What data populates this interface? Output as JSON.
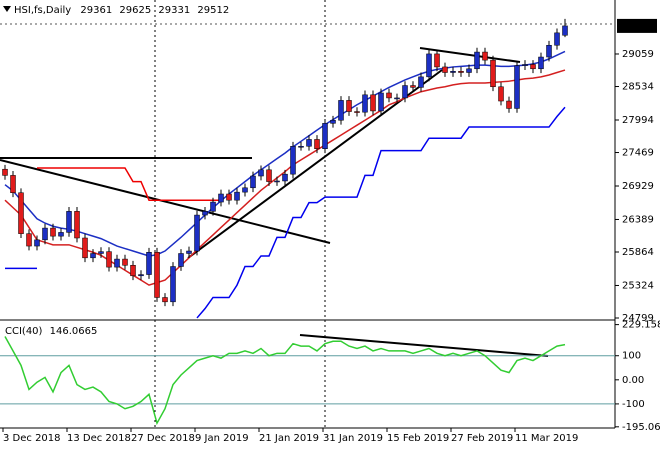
{
  "chart_data": {
    "type": "candlestick",
    "header": "HSI,fs,Daily",
    "up_color": "#1c2fc4",
    "down_color": "#e01b1b",
    "categories": [
      "3 Dec 2018",
      null,
      null,
      null,
      null,
      null,
      null,
      null,
      "13 Dec 2018",
      null,
      null,
      null,
      null,
      null,
      null,
      null,
      "27 Dec 2018",
      null,
      null,
      null,
      null,
      null,
      null,
      null,
      "9 Jan 2019",
      null,
      null,
      null,
      null,
      null,
      null,
      null,
      "21 Jan 2019",
      null,
      null,
      null,
      null,
      null,
      null,
      null,
      "31 Jan 2019",
      null,
      null,
      null,
      null,
      null,
      null,
      null,
      "15 Feb 2019",
      null,
      null,
      null,
      null,
      null,
      null,
      null,
      "27 Feb 2019",
      null,
      null,
      null,
      null,
      null,
      null,
      null,
      "11 Mar 2019",
      null,
      null,
      null,
      null,
      null,
      null
    ],
    "open": [
      27200,
      27100,
      26820,
      26160,
      25960,
      26060,
      26250,
      26120,
      26180,
      26520,
      26090,
      25770,
      25840,
      25870,
      25620,
      25750,
      25650,
      25480,
      25500,
      25860,
      25130,
      25060,
      25630,
      25840,
      25880,
      26460,
      26520,
      26670,
      26800,
      26700,
      26830,
      26900,
      27090,
      27190,
      27000,
      27010,
      27120,
      27570,
      27570,
      27680,
      27530,
      27940,
      27990,
      28310,
      28130,
      28120,
      28400,
      28140,
      28430,
      28350,
      28350,
      28550,
      28520,
      28690,
      29060,
      28850,
      28760,
      28780,
      28760,
      28820,
      29090,
      28960,
      28530,
      28300,
      28180,
      28870,
      28890,
      28820,
      29010,
      29200,
      29361
    ],
    "high": [
      27270,
      27170,
      26890,
      26230,
      26130,
      26320,
      26320,
      26250,
      26590,
      26590,
      26160,
      25910,
      25940,
      25940,
      25820,
      25820,
      25720,
      25570,
      25930,
      25930,
      25200,
      25700,
      25910,
      25950,
      26530,
      26590,
      26740,
      26870,
      26870,
      26900,
      26970,
      27160,
      27260,
      27260,
      27080,
      27190,
      27640,
      27640,
      27750,
      27750,
      28010,
      28060,
      28380,
      28380,
      28200,
      28470,
      28470,
      28500,
      28500,
      28420,
      28620,
      28620,
      28760,
      29130,
      29130,
      28920,
      28850,
      28850,
      28890,
      29160,
      29160,
      29030,
      28600,
      28370,
      28940,
      28960,
      28960,
      29080,
      29270,
      29470,
      29625
    ],
    "low": [
      27030,
      26750,
      26090,
      25890,
      25890,
      25990,
      26050,
      26050,
      26110,
      26020,
      25700,
      25700,
      25770,
      25550,
      25550,
      25580,
      25410,
      25410,
      25430,
      25060,
      24990,
      24990,
      25560,
      25770,
      25810,
      26390,
      26450,
      26600,
      26630,
      26630,
      26760,
      26830,
      27020,
      26930,
      26930,
      26940,
      27050,
      27500,
      27500,
      27460,
      27460,
      27870,
      27920,
      28060,
      28050,
      28050,
      28070,
      28070,
      28280,
      28280,
      28280,
      28450,
      28450,
      28620,
      28780,
      28690,
      28690,
      28690,
      28690,
      28750,
      28890,
      28460,
      28230,
      28110,
      28110,
      28800,
      28750,
      28750,
      28940,
      29130,
      29331
    ],
    "close": [
      27100,
      26820,
      26160,
      25960,
      26060,
      26250,
      26120,
      26180,
      26520,
      26090,
      25770,
      25840,
      25870,
      25620,
      25750,
      25650,
      25480,
      25500,
      25860,
      25130,
      25060,
      25630,
      25840,
      25880,
      26460,
      26520,
      26670,
      26800,
      26700,
      26830,
      26900,
      27090,
      27190,
      27000,
      27010,
      27120,
      27570,
      27570,
      27680,
      27530,
      27940,
      27990,
      28310,
      28130,
      28120,
      28400,
      28140,
      28430,
      28350,
      28350,
      28550,
      28520,
      28690,
      29060,
      28850,
      28760,
      28780,
      28760,
      28820,
      29090,
      28960,
      28530,
      28300,
      28180,
      28870,
      28890,
      28820,
      29010,
      29200,
      29400,
      29512
    ],
    "overlays": [
      {
        "color": "#d42020",
        "values": [
          26700,
          26580,
          26460,
          26260,
          26060,
          26020,
          25980,
          25980,
          25980,
          25940,
          25900,
          25860,
          25810,
          25730,
          25650,
          25570,
          25490,
          25410,
          25330,
          25370,
          25410,
          25530,
          25650,
          25770,
          25900,
          26020,
          26140,
          26260,
          26380,
          26500,
          26620,
          26740,
          26860,
          26960,
          27060,
          27160,
          27270,
          27350,
          27430,
          27510,
          27590,
          27670,
          27750,
          27830,
          27910,
          27990,
          28070,
          28150,
          28240,
          28290,
          28350,
          28400,
          28450,
          28480,
          28510,
          28530,
          28560,
          28580,
          28590,
          28590,
          28590,
          28600,
          28610,
          28620,
          28640,
          28660,
          28670,
          28690,
          28720,
          28760,
          28800
        ]
      },
      {
        "color": "#1c2fc4",
        "values": [
          26950,
          26850,
          26700,
          26550,
          26400,
          26330,
          26280,
          26250,
          26230,
          26200,
          26160,
          26120,
          26080,
          26020,
          25960,
          25920,
          25880,
          25840,
          25800,
          25820,
          25880,
          25990,
          26100,
          26220,
          26340,
          26460,
          26580,
          26690,
          26800,
          26900,
          27000,
          27100,
          27190,
          27280,
          27370,
          27460,
          27560,
          27650,
          27740,
          27830,
          27920,
          28000,
          28080,
          28160,
          28240,
          28310,
          28380,
          28450,
          28520,
          28580,
          28640,
          28690,
          28740,
          28780,
          28810,
          28830,
          28850,
          28860,
          28870,
          28880,
          28880,
          28870,
          28860,
          28860,
          28870,
          28880,
          28900,
          28930,
          28980,
          29040,
          29100
        ]
      },
      {
        "color": "#0000ee",
        "values": [
          25600,
          25600,
          25600,
          25600,
          25600,
          null,
          null,
          null,
          null,
          null,
          null,
          null,
          null,
          null,
          null,
          null,
          null,
          null,
          null,
          null,
          null,
          null,
          null,
          null,
          24800,
          24950,
          25130,
          25130,
          25130,
          25330,
          25630,
          25630,
          25800,
          25800,
          26100,
          26100,
          26420,
          26420,
          26660,
          26660,
          26750,
          26750,
          26750,
          26750,
          26750,
          27100,
          27100,
          27500,
          27500,
          27500,
          27500,
          27500,
          27500,
          27700,
          27700,
          27700,
          27700,
          27700,
          27880,
          27880,
          27880,
          27880,
          27880,
          27880,
          27880,
          27880,
          27880,
          27880,
          27880,
          28050,
          28200
        ]
      },
      {
        "color": "#ee0000",
        "values": [
          null,
          null,
          null,
          null,
          27220,
          27220,
          27220,
          27220,
          27220,
          27220,
          27220,
          27220,
          27220,
          27220,
          27220,
          27220,
          27000,
          27000,
          26700,
          26700,
          26700,
          26700,
          26700,
          26700,
          26700,
          26700,
          26700,
          26700,
          null,
          null,
          null,
          null,
          null,
          null,
          null,
          null,
          null,
          null,
          null,
          null,
          null,
          null,
          null,
          null,
          null,
          null,
          null,
          null,
          null,
          null,
          null,
          null,
          null,
          null,
          null,
          null,
          null,
          null,
          null,
          null,
          null,
          null,
          null,
          null,
          null,
          null,
          null,
          null,
          null,
          null,
          null
        ]
      }
    ],
    "ylim": [
      24783,
      29930
    ],
    "yticks": [
      29059,
      28534,
      27994,
      27469,
      26929,
      26389,
      25864,
      25324,
      24799
    ],
    "cci": {
      "label": "CCI(40)",
      "color": "#32cd32",
      "values": [
        180,
        120,
        60,
        -40,
        -10,
        10,
        -50,
        30,
        60,
        -20,
        -40,
        -30,
        -50,
        -90,
        -100,
        -120,
        -110,
        -90,
        -60,
        -180,
        -120,
        -20,
        20,
        50,
        80,
        90,
        100,
        90,
        110,
        110,
        120,
        110,
        130,
        100,
        110,
        110,
        150,
        140,
        140,
        120,
        150,
        160,
        160,
        140,
        130,
        140,
        120,
        130,
        120,
        120,
        120,
        110,
        120,
        130,
        110,
        100,
        110,
        100,
        110,
        120,
        100,
        70,
        40,
        30,
        80,
        90,
        80,
        100,
        120,
        140,
        146.0665
      ],
      "ylim": [
        -200,
        240
      ],
      "yticks": [
        229.1588,
        100,
        {
          "value": 0,
          "label": "0.00"
        },
        -100,
        -195.0611
      ]
    }
  }
}
